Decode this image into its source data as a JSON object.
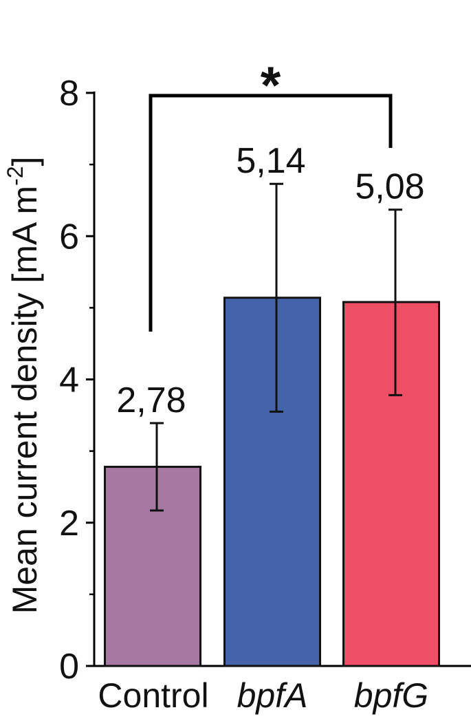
{
  "chart_data": {
    "type": "bar",
    "categories": [
      "Control",
      "bpfA",
      "bpfG"
    ],
    "category_italic": [
      false,
      true,
      true
    ],
    "values": [
      2.78,
      5.14,
      5.08
    ],
    "value_labels": [
      "2,78",
      "5,14",
      "5,08"
    ],
    "error_low": [
      2.17,
      3.55,
      3.78
    ],
    "error_high": [
      3.39,
      6.73,
      6.37
    ],
    "colors": [
      "#a679a3",
      "#4563a9",
      "#ee4f67"
    ],
    "ylabel": "Mean current density [mA m",
    "ylabel_superscript": "-2",
    "ylabel_suffix": "]",
    "ylim": [
      0,
      8
    ],
    "yticks": [
      "0",
      "2",
      "4",
      "6",
      "8"
    ],
    "grid": false,
    "significance": {
      "from": "Control",
      "to": "bpfG",
      "label": "*"
    }
  }
}
